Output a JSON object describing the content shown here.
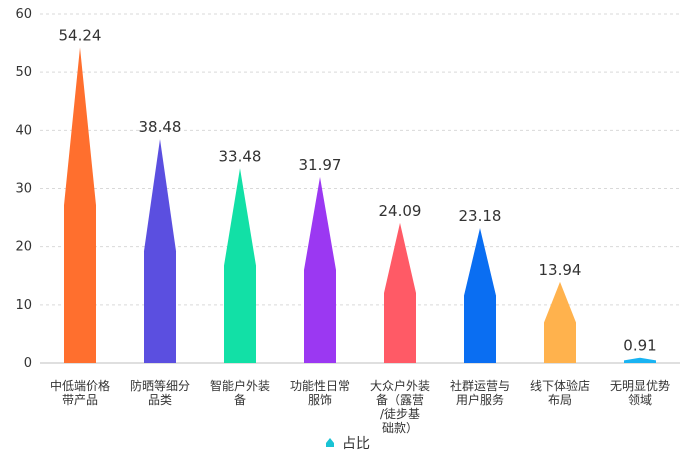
{
  "chart_data": {
    "type": "bar",
    "bar_shape": "spike",
    "categories": [
      [
        "中低端价格",
        "带产品"
      ],
      [
        "防晒等细分",
        "品类"
      ],
      [
        "智能户外装",
        "备"
      ],
      [
        "功能性日常",
        "服饰"
      ],
      [
        "大众户外装",
        "备（露营",
        "/徒步基",
        "础款）"
      ],
      [
        "社群运营与",
        "用户服务"
      ],
      [
        "线下体验店",
        "布局"
      ],
      [
        "无明显优势",
        "领域"
      ]
    ],
    "series": [
      {
        "name": "占比",
        "values": [
          54.24,
          38.48,
          33.48,
          31.97,
          24.09,
          23.18,
          13.94,
          0.91
        ],
        "colors": [
          "#ff6f2e",
          "#5b4fe0",
          "#12e0a6",
          "#9b38f2",
          "#ff5a66",
          "#0a6ef2",
          "#ffb24d",
          "#19b3f2"
        ]
      }
    ],
    "ylim": [
      0,
      60
    ],
    "yticks": [
      0,
      10,
      20,
      30,
      40,
      50,
      60
    ],
    "grid": true,
    "legend_position": "bottom-center",
    "legend_color": "#19c3d4"
  }
}
